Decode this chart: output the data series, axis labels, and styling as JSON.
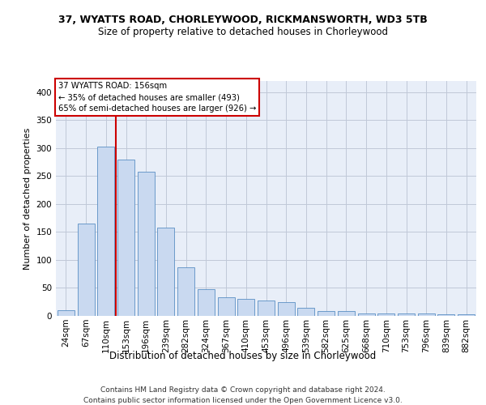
{
  "title1": "37, WYATTS ROAD, CHORLEYWOOD, RICKMANSWORTH, WD3 5TB",
  "title2": "Size of property relative to detached houses in Chorleywood",
  "xlabel": "Distribution of detached houses by size in Chorleywood",
  "ylabel": "Number of detached properties",
  "footer1": "Contains HM Land Registry data © Crown copyright and database right 2024.",
  "footer2": "Contains public sector information licensed under the Open Government Licence v3.0.",
  "categories": [
    "24sqm",
    "67sqm",
    "110sqm",
    "153sqm",
    "196sqm",
    "239sqm",
    "282sqm",
    "324sqm",
    "367sqm",
    "410sqm",
    "453sqm",
    "496sqm",
    "539sqm",
    "582sqm",
    "625sqm",
    "668sqm",
    "710sqm",
    "753sqm",
    "796sqm",
    "839sqm",
    "882sqm"
  ],
  "values": [
    10,
    165,
    303,
    280,
    258,
    158,
    87,
    48,
    33,
    30,
    27,
    25,
    14,
    8,
    8,
    5,
    5,
    5,
    4,
    3,
    3
  ],
  "bar_color": "#c9d9f0",
  "bar_edge_color": "#5a8fc4",
  "grid_color": "#c0c8d8",
  "background_color": "#e8eef8",
  "vline_index": 3,
  "vline_color": "#cc0000",
  "annotation_text": "37 WYATTS ROAD: 156sqm\n← 35% of detached houses are smaller (493)\n65% of semi-detached houses are larger (926) →",
  "annotation_box_color": "#ffffff",
  "annotation_edge_color": "#cc0000",
  "ylim": [
    0,
    420
  ],
  "yticks": [
    0,
    50,
    100,
    150,
    200,
    250,
    300,
    350,
    400
  ],
  "title1_fontsize": 9,
  "title2_fontsize": 8.5,
  "ylabel_fontsize": 8,
  "xlabel_fontsize": 8.5,
  "tick_fontsize": 7.5,
  "footer_fontsize": 6.5
}
